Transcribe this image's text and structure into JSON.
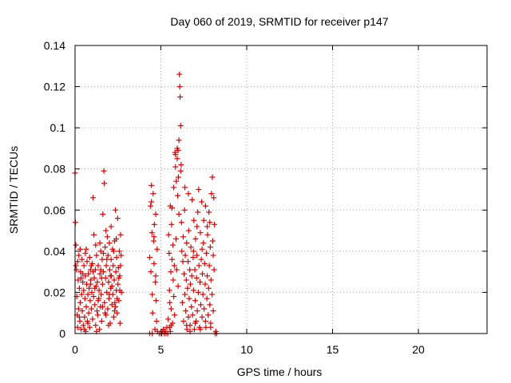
{
  "chart_data": {
    "type": "scatter",
    "title": "Day 060 of 2019, SRMTID for receiver p147",
    "xlabel": "GPS time / hours",
    "ylabel": "SRMTID / TECUs",
    "xlim": [
      0,
      24
    ],
    "ylim": [
      0,
      0.14
    ],
    "xticks": [
      0,
      5,
      10,
      15,
      20
    ],
    "xtick_labels": [
      "0",
      "5",
      "10",
      "15",
      "20"
    ],
    "yticks": [
      0,
      0.02,
      0.04,
      0.06,
      0.08,
      0.1,
      0.12,
      0.14
    ],
    "ytick_labels": [
      "0",
      "0.02",
      "0.04",
      "0.06",
      "0.08",
      "0.1",
      "0.12",
      "0.14"
    ],
    "grid": true,
    "marker": "+",
    "marker_color": "#dd0000",
    "points": [
      [
        0.0,
        0.078
      ],
      [
        0.02,
        0.054
      ],
      [
        0.05,
        0.043
      ],
      [
        0.05,
        0.033
      ],
      [
        0.08,
        0.031
      ],
      [
        0.1,
        0.018
      ],
      [
        0.12,
        0.009
      ],
      [
        0.15,
        0.003
      ],
      [
        0.18,
        0.026
      ],
      [
        0.2,
        0.012
      ],
      [
        0.22,
        0.038
      ],
      [
        0.25,
        0.022
      ],
      [
        0.28,
        0.006
      ],
      [
        0.3,
        0.015
      ],
      [
        0.32,
        0.03
      ],
      [
        0.35,
        0.002
      ],
      [
        0.38,
        0.019
      ],
      [
        0.4,
        0.036
      ],
      [
        0.42,
        0.011
      ],
      [
        0.45,
        0.025
      ],
      [
        0.48,
        0.004
      ],
      [
        0.5,
        0.021
      ],
      [
        0.52,
        0.033
      ],
      [
        0.55,
        0.008
      ],
      [
        0.58,
        0.017
      ],
      [
        0.6,
        0.028
      ],
      [
        0.62,
        0.001
      ],
      [
        0.65,
        0.013
      ],
      [
        0.68,
        0.024
      ],
      [
        0.7,
        0.035
      ],
      [
        0.72,
        0.006
      ],
      [
        0.75,
        0.019
      ],
      [
        0.78,
        0.029
      ],
      [
        0.8,
        0.01
      ],
      [
        0.82,
        0.022
      ],
      [
        0.85,
        0.003
      ],
      [
        0.88,
        0.016
      ],
      [
        0.9,
        0.031
      ],
      [
        0.92,
        0.026
      ],
      [
        0.95,
        0.012
      ],
      [
        0.98,
        0.02
      ],
      [
        1.0,
        0.034
      ],
      [
        1.02,
        0.007
      ],
      [
        1.05,
        0.066
      ],
      [
        1.08,
        0.018
      ],
      [
        1.1,
        0.048
      ],
      [
        1.12,
        0.027
      ],
      [
        1.15,
        0.014
      ],
      [
        1.18,
        0.031
      ],
      [
        1.2,
        0.004
      ],
      [
        1.22,
        0.023
      ],
      [
        1.25,
        0.038
      ],
      [
        1.28,
        0.011
      ],
      [
        1.3,
        0.025
      ],
      [
        1.32,
        0.009
      ],
      [
        1.35,
        0.033
      ],
      [
        1.38,
        0.017
      ],
      [
        1.4,
        0.021
      ],
      [
        1.42,
        0.002
      ],
      [
        1.45,
        0.029
      ],
      [
        1.48,
        0.013
      ],
      [
        1.5,
        0.04
      ],
      [
        1.52,
        0.019
      ],
      [
        1.55,
        0.006
      ],
      [
        1.58,
        0.036
      ],
      [
        1.6,
        0.024
      ],
      [
        1.62,
        0.058
      ],
      [
        1.65,
        0.03
      ],
      [
        1.68,
        0.079
      ],
      [
        1.7,
        0.073
      ],
      [
        1.72,
        0.015
      ],
      [
        1.75,
        0.042
      ],
      [
        1.78,
        0.027
      ],
      [
        1.8,
        0.009
      ],
      [
        1.82,
        0.033
      ],
      [
        1.85,
        0.02
      ],
      [
        1.88,
        0.047
      ],
      [
        1.9,
        0.012
      ],
      [
        1.92,
        0.038
      ],
      [
        1.95,
        0.025
      ],
      [
        1.98,
        0.017
      ],
      [
        2.0,
        0.044
      ],
      [
        2.02,
        0.031
      ],
      [
        2.05,
        0.005
      ],
      [
        2.08,
        0.022
      ],
      [
        2.1,
        0.036
      ],
      [
        2.12,
        0.028
      ],
      [
        2.15,
        0.014
      ],
      [
        2.18,
        0.041
      ],
      [
        2.2,
        0.019
      ],
      [
        2.22,
        0.033
      ],
      [
        2.25,
        0.008
      ],
      [
        2.28,
        0.026
      ],
      [
        2.3,
        0.045
      ],
      [
        2.32,
        0.015
      ],
      [
        2.35,
        0.06
      ],
      [
        2.38,
        0.03
      ],
      [
        2.4,
        0.021
      ],
      [
        2.42,
        0.037
      ],
      [
        2.45,
        0.01
      ],
      [
        2.48,
        0.056
      ],
      [
        2.5,
        0.024
      ],
      [
        2.52,
        0.032
      ],
      [
        2.55,
        0.016
      ],
      [
        2.58,
        0.04
      ],
      [
        2.6,
        0.028
      ],
      [
        2.62,
        0.005
      ],
      [
        2.65,
        0.048
      ],
      [
        2.68,
        0.038
      ],
      [
        2.7,
        0.02
      ],
      [
        0.3,
        0.041
      ],
      [
        0.6,
        0.039
      ],
      [
        0.9,
        0.024
      ],
      [
        1.2,
        0.043
      ],
      [
        1.5,
        0.031
      ],
      [
        1.8,
        0.05
      ],
      [
        2.1,
        0.052
      ],
      [
        2.4,
        0.046
      ],
      [
        0.45,
        0.029
      ],
      [
        0.75,
        0.005
      ],
      [
        1.05,
        0.03
      ],
      [
        1.35,
        0.016
      ],
      [
        1.65,
        0.039
      ],
      [
        1.95,
        0.004
      ],
      [
        2.25,
        0.04
      ],
      [
        2.55,
        0.027
      ],
      [
        0.15,
        0.035
      ],
      [
        0.55,
        0.002
      ],
      [
        0.85,
        0.037
      ],
      [
        1.15,
        0.022
      ],
      [
        1.45,
        0.044
      ],
      [
        1.75,
        0.01
      ],
      [
        2.05,
        0.028
      ],
      [
        2.35,
        0.013
      ],
      [
        2.65,
        0.033
      ],
      [
        0.25,
        0.008
      ],
      [
        0.65,
        0.041
      ],
      [
        1.25,
        0.001
      ],
      [
        1.55,
        0.027
      ],
      [
        1.85,
        0.036
      ],
      [
        2.15,
        0.023
      ],
      [
        2.45,
        0.017
      ],
      [
        0.35,
        0.027
      ],
      [
        0.95,
        0.033
      ],
      [
        1.6,
        0.013
      ],
      [
        2.0,
        0.019
      ],
      [
        2.3,
        0.011
      ],
      [
        2.6,
        0.021
      ],
      [
        4.35,
        0.037
      ],
      [
        4.4,
        0.062
      ],
      [
        4.42,
        0.03
      ],
      [
        4.45,
        0.072
      ],
      [
        4.48,
        0.049
      ],
      [
        4.5,
        0.019
      ],
      [
        4.52,
        0.01
      ],
      [
        4.55,
        0.068
      ],
      [
        4.58,
        0.045
      ],
      [
        4.6,
        0.034
      ],
      [
        4.62,
        0.053
      ],
      [
        4.65,
        0.002
      ],
      [
        4.68,
        0.025
      ],
      [
        4.7,
        0.058
      ],
      [
        4.72,
        0.016
      ],
      [
        4.75,
        0.006
      ],
      [
        4.78,
        0.041
      ],
      [
        4.8,
        0.001
      ],
      [
        4.35,
        0.0
      ],
      [
        4.5,
        0.0
      ],
      [
        4.9,
        0.0
      ],
      [
        5.0,
        0.0
      ],
      [
        5.05,
        0.0
      ],
      [
        5.1,
        0.001
      ],
      [
        5.15,
        0.002
      ],
      [
        5.2,
        0.0
      ],
      [
        5.25,
        0.001
      ],
      [
        5.3,
        0.0
      ],
      [
        5.35,
        0.003
      ],
      [
        5.4,
        0.0
      ],
      [
        5.42,
        0.007
      ],
      [
        5.45,
        0.048
      ],
      [
        5.48,
        0.039
      ],
      [
        5.5,
        0.021
      ],
      [
        5.52,
        0.015
      ],
      [
        5.55,
        0.062
      ],
      [
        5.58,
        0.03
      ],
      [
        5.6,
        0.012
      ],
      [
        5.62,
        0.053
      ],
      [
        5.65,
        0.036
      ],
      [
        5.68,
        0.005
      ],
      [
        5.7,
        0.043
      ],
      [
        5.72,
        0.026
      ],
      [
        5.75,
        0.018
      ],
      [
        5.78,
        0.033
      ],
      [
        5.8,
        0.009
      ],
      [
        5.82,
        0.088
      ],
      [
        5.85,
        0.081
      ],
      [
        5.88,
        0.046
      ],
      [
        5.9,
        0.074
      ],
      [
        5.92,
        0.031
      ],
      [
        5.95,
        0.085
      ],
      [
        5.98,
        0.067
      ],
      [
        6.0,
        0.023
      ],
      [
        6.02,
        0.076
      ],
      [
        6.05,
        0.058
      ],
      [
        6.08,
        0.126
      ],
      [
        6.1,
        0.12
      ],
      [
        6.12,
        0.115
      ],
      [
        6.15,
        0.101
      ],
      [
        6.18,
        0.082
      ],
      [
        6.2,
        0.054
      ],
      [
        6.22,
        0.04
      ],
      [
        6.25,
        0.015
      ],
      [
        6.28,
        0.035
      ],
      [
        6.3,
        0.047
      ],
      [
        6.32,
        0.006
      ],
      [
        6.35,
        0.029
      ],
      [
        6.38,
        0.06
      ],
      [
        6.4,
        0.019
      ],
      [
        6.42,
        0.038
      ],
      [
        6.45,
        0.011
      ],
      [
        6.48,
        0.026
      ],
      [
        6.5,
        0.044
      ],
      [
        6.52,
        0.002
      ],
      [
        6.55,
        0.022
      ],
      [
        6.58,
        0.035
      ],
      [
        6.6,
        0.008
      ],
      [
        6.62,
        0.05
      ],
      [
        6.65,
        0.017
      ],
      [
        6.68,
        0.031
      ],
      [
        6.7,
        0.004
      ],
      [
        6.72,
        0.024
      ],
      [
        6.75,
        0.042
      ],
      [
        6.78,
        0.013
      ],
      [
        6.8,
        0.028
      ],
      [
        6.82,
        0.065
      ],
      [
        6.85,
        0.009
      ],
      [
        6.88,
        0.037
      ],
      [
        6.9,
        0.021
      ],
      [
        6.92,
        0.055
      ],
      [
        6.95,
        0.002
      ],
      [
        6.98,
        0.031
      ],
      [
        7.0,
        0.016
      ],
      [
        7.02,
        0.046
      ],
      [
        7.05,
        0.006
      ],
      [
        7.08,
        0.027
      ],
      [
        7.1,
        0.038
      ],
      [
        7.12,
        0.011
      ],
      [
        7.15,
        0.059
      ],
      [
        7.18,
        0.02
      ],
      [
        7.2,
        0.07
      ],
      [
        7.22,
        0.033
      ],
      [
        7.25,
        0.003
      ],
      [
        7.28,
        0.025
      ],
      [
        7.3,
        0.049
      ],
      [
        7.32,
        0.014
      ],
      [
        7.35,
        0.036
      ],
      [
        7.38,
        0.064
      ],
      [
        7.4,
        0.008
      ],
      [
        7.42,
        0.029
      ],
      [
        7.45,
        0.019
      ],
      [
        7.48,
        0.044
      ],
      [
        7.5,
        0.055
      ],
      [
        7.52,
        0.012
      ],
      [
        7.55,
        0.034
      ],
      [
        7.58,
        0.024
      ],
      [
        7.6,
        0.062
      ],
      [
        7.62,
        0.003
      ],
      [
        7.65,
        0.039
      ],
      [
        7.68,
        0.017
      ],
      [
        7.7,
        0.028
      ],
      [
        7.72,
        0.048
      ],
      [
        7.75,
        0.009
      ],
      [
        7.78,
        0.022
      ],
      [
        7.8,
        0.059
      ],
      [
        7.82,
        0.033
      ],
      [
        7.85,
        0.014
      ],
      [
        7.88,
        0.042
      ],
      [
        7.9,
        0.005
      ],
      [
        7.92,
        0.026
      ],
      [
        7.95,
        0.068
      ],
      [
        7.98,
        0.019
      ],
      [
        8.0,
        0.076
      ],
      [
        8.02,
        0.045
      ],
      [
        8.05,
        0.011
      ],
      [
        8.08,
        0.066
      ],
      [
        8.1,
        0.031
      ],
      [
        8.12,
        0.053
      ],
      [
        8.15,
        0.0
      ],
      [
        8.2,
        0.001
      ],
      [
        8.25,
        0.0
      ],
      [
        6.5,
        0.004
      ],
      [
        6.7,
        0.001
      ],
      [
        7.0,
        0.005
      ],
      [
        7.3,
        0.002
      ],
      [
        7.6,
        0.006
      ],
      [
        7.9,
        0.003
      ],
      [
        6.4,
        0.071
      ],
      [
        6.6,
        0.068
      ],
      [
        5.95,
        0.09
      ],
      [
        6.05,
        0.094
      ],
      [
        5.85,
        0.087
      ],
      [
        6.15,
        0.079
      ],
      [
        6.0,
        0.089
      ],
      [
        5.75,
        0.071
      ],
      [
        5.65,
        0.061
      ],
      [
        4.45,
        0.064
      ],
      [
        4.6,
        0.047
      ],
      [
        4.7,
        0.028
      ],
      [
        5.5,
        0.003
      ],
      [
        5.55,
        0.001
      ],
      [
        5.6,
        0.004
      ],
      [
        6.9,
        0.04
      ],
      [
        7.1,
        0.052
      ],
      [
        7.4,
        0.041
      ],
      [
        7.7,
        0.052
      ],
      [
        7.85,
        0.054
      ],
      [
        8.05,
        0.038
      ]
    ]
  }
}
